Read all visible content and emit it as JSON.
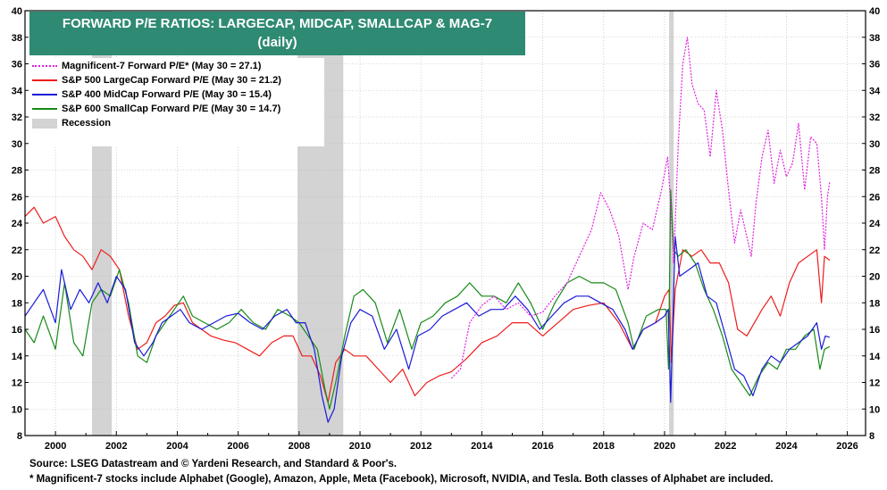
{
  "title": {
    "line1": "FORWARD P/E RATIOS: LARGECAP, MIDCAP, SMALLCAP & MAG-7",
    "line2": "(daily)"
  },
  "colors": {
    "title_bg": "#2f8a73",
    "mag7": "#e020e0",
    "largecap": "#ee1c1c",
    "midcap": "#1a1ad8",
    "smallcap": "#168a16",
    "recession": "#d3d3d3"
  },
  "legend": [
    {
      "key": "mag7",
      "label": "Magnificent-7 Forward P/E* (May 30 = 27.1)"
    },
    {
      "key": "largecap",
      "label": "S&P 500 LargeCap Forward P/E (May 30 = 21.2)"
    },
    {
      "key": "midcap",
      "label": "S&P 400 MidCap Forward P/E (May 30 = 15.4)"
    },
    {
      "key": "smallcap",
      "label": "S&P 600 SmallCap Forward P/E (May 30 = 14.7)"
    },
    {
      "key": "recession",
      "label": "Recession"
    }
  ],
  "footer": {
    "source": "Source: LSEG Datastream and © Yardeni Research, and Standard & Poor's.",
    "note": "* Magnificent-7 stocks include Alphabet (Google), Amazon, Apple, Meta (Facebook), Microsoft, NVIDIA, and Tesla. Both classes of Alphabet are included."
  },
  "chart_data": {
    "type": "line",
    "x_ticks": [
      "2000",
      "2002",
      "2004",
      "2006",
      "2008",
      "2010",
      "2012",
      "2014",
      "2016",
      "2018",
      "2020",
      "2022",
      "2024",
      "2026"
    ],
    "y_ticks": [
      "8",
      "10",
      "12",
      "14",
      "16",
      "18",
      "20",
      "22",
      "24",
      "26",
      "28",
      "30",
      "32",
      "34",
      "36",
      "38",
      "40"
    ],
    "xlim": [
      1999.0,
      2026.6
    ],
    "ylim": [
      8,
      40
    ],
    "recessions": [
      [
        2001.2,
        2001.85
      ],
      [
        2007.95,
        2009.45
      ],
      [
        2020.15,
        2020.3
      ]
    ],
    "series": [
      {
        "name": "Magnificent-7 Forward P/E* (May 30 = 27.1)",
        "key": "mag7",
        "dash": "2,1.5",
        "x": [
          2013.0,
          2013.3,
          2013.6,
          2014.0,
          2014.4,
          2014.8,
          2015.2,
          2015.6,
          2016.0,
          2016.4,
          2016.8,
          2017.2,
          2017.6,
          2017.9,
          2018.2,
          2018.5,
          2018.8,
          2019.0,
          2019.3,
          2019.6,
          2019.9,
          2020.1,
          2020.2,
          2020.3,
          2020.45,
          2020.6,
          2020.75,
          2020.9,
          2021.1,
          2021.3,
          2021.5,
          2021.7,
          2021.9,
          2022.1,
          2022.3,
          2022.5,
          2022.7,
          2022.85,
          2023.0,
          2023.2,
          2023.4,
          2023.6,
          2023.8,
          2024.0,
          2024.2,
          2024.4,
          2024.6,
          2024.8,
          2025.0,
          2025.15,
          2025.25,
          2025.35,
          2025.42
        ],
        "y": [
          12.3,
          13.0,
          16.5,
          17.8,
          18.5,
          17.5,
          18.0,
          17.0,
          17.3,
          18.5,
          19.5,
          21.5,
          23.5,
          26.3,
          25.0,
          23.0,
          19.0,
          21.5,
          24.0,
          23.5,
          26.5,
          29.0,
          25.5,
          21.0,
          30.0,
          36.0,
          38.0,
          34.5,
          33.0,
          32.5,
          29.0,
          34.0,
          31.0,
          26.5,
          22.5,
          25.0,
          23.0,
          21.5,
          25.5,
          29.0,
          31.0,
          27.0,
          29.5,
          27.5,
          28.5,
          31.5,
          26.5,
          30.5,
          30.0,
          26.0,
          22.0,
          26.0,
          27.1
        ]
      },
      {
        "name": "S&P 500 LargeCap Forward P/E (May 30 = 21.2)",
        "key": "largecap",
        "dash": "",
        "x": [
          1999.0,
          1999.3,
          1999.6,
          2000.0,
          2000.3,
          2000.6,
          2000.9,
          2001.2,
          2001.5,
          2001.8,
          2002.1,
          2002.4,
          2002.7,
          2003.0,
          2003.3,
          2003.6,
          2003.9,
          2004.2,
          2004.5,
          2004.8,
          2005.1,
          2005.5,
          2005.9,
          2006.3,
          2006.7,
          2007.1,
          2007.5,
          2007.8,
          2008.1,
          2008.4,
          2008.7,
          2008.95,
          2009.2,
          2009.5,
          2009.8,
          2010.2,
          2010.6,
          2011.0,
          2011.4,
          2011.8,
          2012.2,
          2012.6,
          2013.0,
          2013.5,
          2014.0,
          2014.5,
          2015.0,
          2015.5,
          2016.0,
          2016.5,
          2017.0,
          2017.5,
          2018.0,
          2018.5,
          2018.95,
          2019.3,
          2019.7,
          2020.0,
          2020.15,
          2020.22,
          2020.35,
          2020.6,
          2020.9,
          2021.2,
          2021.5,
          2021.8,
          2022.1,
          2022.4,
          2022.7,
          2022.95,
          2023.2,
          2023.5,
          2023.8,
          2024.1,
          2024.4,
          2024.7,
          2025.0,
          2025.15,
          2025.25,
          2025.42
        ],
        "y": [
          24.5,
          25.2,
          24.0,
          24.5,
          23.0,
          22.0,
          21.5,
          20.5,
          22.0,
          21.5,
          20.5,
          17.0,
          14.5,
          15.0,
          16.5,
          17.0,
          17.8,
          18.0,
          16.5,
          16.0,
          15.5,
          15.2,
          15.0,
          14.5,
          14.0,
          15.0,
          15.5,
          15.5,
          14.0,
          14.0,
          12.5,
          10.5,
          13.5,
          14.5,
          14.0,
          14.0,
          13.0,
          12.0,
          13.0,
          11.0,
          12.0,
          12.5,
          12.8,
          13.8,
          15.0,
          15.5,
          16.5,
          16.5,
          15.5,
          16.5,
          17.5,
          17.8,
          18.0,
          16.5,
          14.5,
          16.0,
          16.5,
          18.5,
          19.0,
          13.5,
          19.0,
          22.0,
          21.5,
          22.0,
          21.0,
          21.0,
          19.5,
          16.0,
          15.5,
          16.5,
          17.5,
          18.5,
          17.0,
          19.5,
          21.0,
          21.5,
          22.0,
          18.0,
          21.5,
          21.2
        ]
      },
      {
        "name": "S&P 400 MidCap Forward P/E (May 30 = 15.4)",
        "key": "midcap",
        "dash": "",
        "x": [
          1999.0,
          1999.3,
          1999.6,
          2000.0,
          2000.2,
          2000.5,
          2000.8,
          2001.1,
          2001.4,
          2001.7,
          2002.0,
          2002.3,
          2002.6,
          2002.9,
          2003.2,
          2003.5,
          2003.8,
          2004.1,
          2004.4,
          2004.8,
          2005.2,
          2005.6,
          2006.0,
          2006.4,
          2006.8,
          2007.2,
          2007.6,
          2007.9,
          2008.2,
          2008.5,
          2008.75,
          2008.95,
          2009.15,
          2009.4,
          2009.7,
          2010.0,
          2010.4,
          2010.8,
          2011.2,
          2011.6,
          2011.9,
          2012.3,
          2012.7,
          2013.1,
          2013.5,
          2013.9,
          2014.3,
          2014.7,
          2015.1,
          2015.5,
          2015.9,
          2016.3,
          2016.7,
          2017.1,
          2017.5,
          2017.9,
          2018.3,
          2018.7,
          2018.95,
          2019.3,
          2019.7,
          2020.0,
          2020.12,
          2020.2,
          2020.35,
          2020.5,
          2020.8,
          2021.1,
          2021.4,
          2021.7,
          2022.0,
          2022.3,
          2022.6,
          2022.9,
          2023.2,
          2023.5,
          2023.8,
          2024.1,
          2024.4,
          2024.7,
          2025.0,
          2025.15,
          2025.28,
          2025.42
        ],
        "y": [
          17.0,
          18.0,
          19.0,
          16.5,
          20.5,
          17.5,
          19.0,
          18.0,
          19.5,
          18.0,
          20.0,
          19.0,
          15.0,
          14.0,
          15.0,
          16.5,
          17.0,
          17.5,
          16.5,
          16.0,
          16.5,
          17.0,
          17.2,
          16.5,
          16.0,
          17.0,
          17.5,
          16.5,
          16.5,
          14.5,
          11.0,
          9.0,
          10.0,
          14.0,
          16.5,
          17.5,
          17.0,
          14.5,
          16.0,
          13.0,
          15.5,
          16.0,
          17.0,
          17.5,
          18.0,
          17.0,
          17.5,
          17.5,
          18.5,
          17.5,
          16.0,
          17.0,
          18.0,
          18.5,
          18.5,
          18.0,
          17.5,
          16.0,
          14.5,
          16.0,
          16.5,
          17.0,
          17.5,
          10.5,
          23.0,
          20.0,
          20.5,
          21.0,
          18.5,
          18.0,
          15.5,
          13.0,
          12.5,
          11.0,
          13.0,
          14.0,
          13.5,
          14.5,
          15.0,
          15.5,
          16.5,
          14.5,
          15.5,
          15.4
        ]
      },
      {
        "name": "S&P 600 SmallCap Forward P/E (May 30 = 14.7)",
        "key": "smallcap",
        "dash": "",
        "x": [
          1999.0,
          1999.3,
          1999.6,
          2000.0,
          2000.3,
          2000.6,
          2000.9,
          2001.2,
          2001.5,
          2001.8,
          2002.1,
          2002.4,
          2002.7,
          2003.0,
          2003.3,
          2003.6,
          2003.9,
          2004.2,
          2004.5,
          2004.9,
          2005.3,
          2005.7,
          2006.1,
          2006.5,
          2006.9,
          2007.3,
          2007.7,
          2008.0,
          2008.3,
          2008.6,
          2008.85,
          2009.0,
          2009.2,
          2009.5,
          2009.8,
          2010.1,
          2010.5,
          2010.9,
          2011.3,
          2011.7,
          2012.0,
          2012.4,
          2012.8,
          2013.2,
          2013.6,
          2014.0,
          2014.4,
          2014.8,
          2015.2,
          2015.6,
          2016.0,
          2016.4,
          2016.8,
          2017.2,
          2017.6,
          2018.0,
          2018.4,
          2018.8,
          2019.0,
          2019.4,
          2019.8,
          2020.05,
          2020.13,
          2020.2,
          2020.3,
          2020.45,
          2020.7,
          2021.0,
          2021.3,
          2021.6,
          2021.9,
          2022.2,
          2022.5,
          2022.8,
          2023.1,
          2023.4,
          2023.7,
          2024.0,
          2024.3,
          2024.6,
          2024.9,
          2025.1,
          2025.25,
          2025.42
        ],
        "y": [
          16.0,
          15.0,
          17.0,
          14.5,
          19.5,
          15.0,
          14.0,
          18.0,
          19.0,
          18.5,
          20.5,
          18.0,
          14.0,
          13.5,
          15.5,
          16.5,
          17.5,
          18.5,
          17.0,
          16.5,
          16.0,
          16.5,
          17.5,
          16.5,
          16.0,
          17.5,
          17.0,
          16.5,
          15.5,
          14.5,
          11.5,
          10.0,
          12.0,
          15.5,
          18.5,
          19.0,
          18.0,
          15.0,
          17.5,
          14.5,
          16.5,
          17.0,
          18.0,
          18.5,
          19.5,
          18.5,
          18.5,
          18.0,
          19.5,
          18.0,
          16.0,
          18.0,
          19.5,
          20.0,
          19.5,
          19.5,
          19.0,
          16.5,
          14.5,
          17.0,
          17.5,
          17.5,
          13.0,
          26.5,
          22.0,
          21.5,
          22.0,
          21.0,
          19.0,
          17.5,
          15.5,
          13.0,
          12.0,
          11.0,
          12.5,
          13.5,
          13.0,
          14.5,
          14.5,
          15.5,
          16.0,
          13.0,
          14.5,
          14.7
        ]
      }
    ]
  }
}
